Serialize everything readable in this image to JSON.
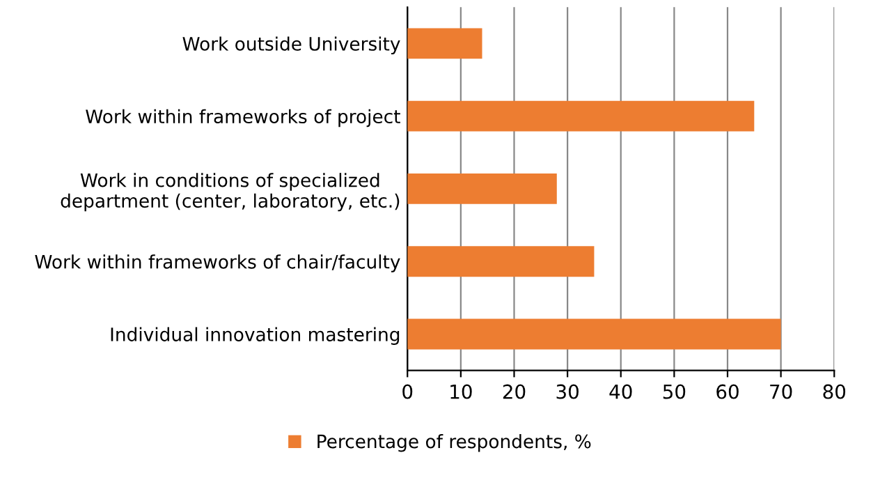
{
  "chart_data": {
    "type": "bar",
    "orientation": "horizontal",
    "categories": [
      "Work outside University",
      "Work within frameworks of project",
      "Work in conditions of specialized\ndepartment (center, laboratory, etc.)",
      "Work within frameworks of chair/faculty",
      "Individual innovation mastering"
    ],
    "series": [
      {
        "name": "Percentage of respondents, %",
        "color": "#ed7d31",
        "values": [
          14,
          65,
          28,
          35,
          70
        ]
      }
    ],
    "xlim": [
      0,
      80
    ],
    "xticks": [
      0,
      10,
      20,
      30,
      40,
      50,
      60,
      70,
      80
    ],
    "grid": "x",
    "legend": "bottom"
  }
}
